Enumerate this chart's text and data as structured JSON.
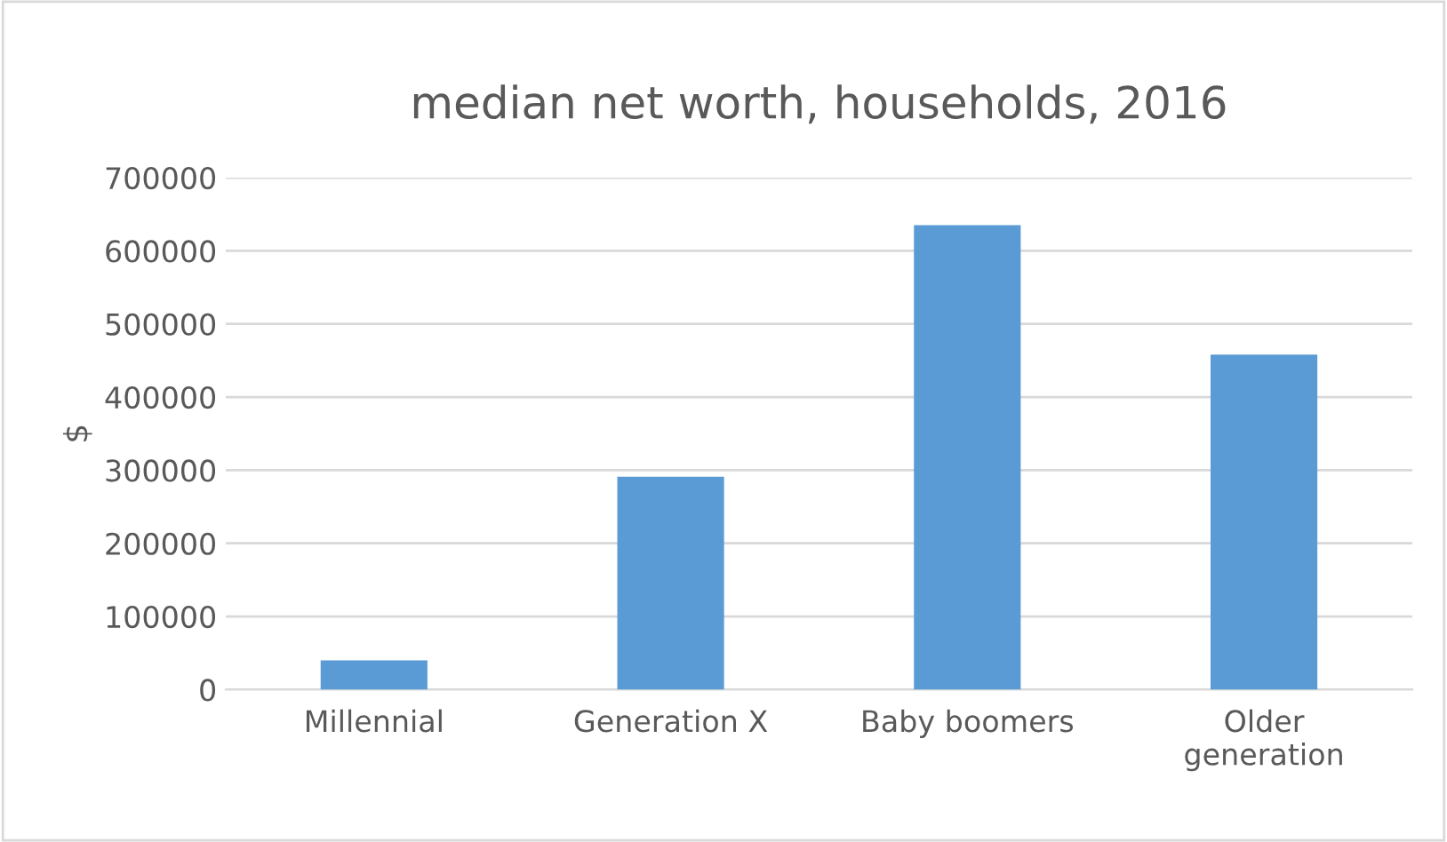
{
  "chart_data": {
    "type": "bar",
    "title": "median net worth, households, 2016",
    "ylabel": "$",
    "categories": [
      "Millennial",
      "Generation X",
      "Baby boomers",
      "Older\ngeneration"
    ],
    "values": [
      40000,
      291000,
      635000,
      458000
    ],
    "color": "#5b9bd5",
    "ylim": [
      0,
      700000
    ],
    "yticks": [
      0,
      100000,
      200000,
      300000,
      400000,
      500000,
      600000,
      700000
    ],
    "grid": "y",
    "legend": false
  }
}
